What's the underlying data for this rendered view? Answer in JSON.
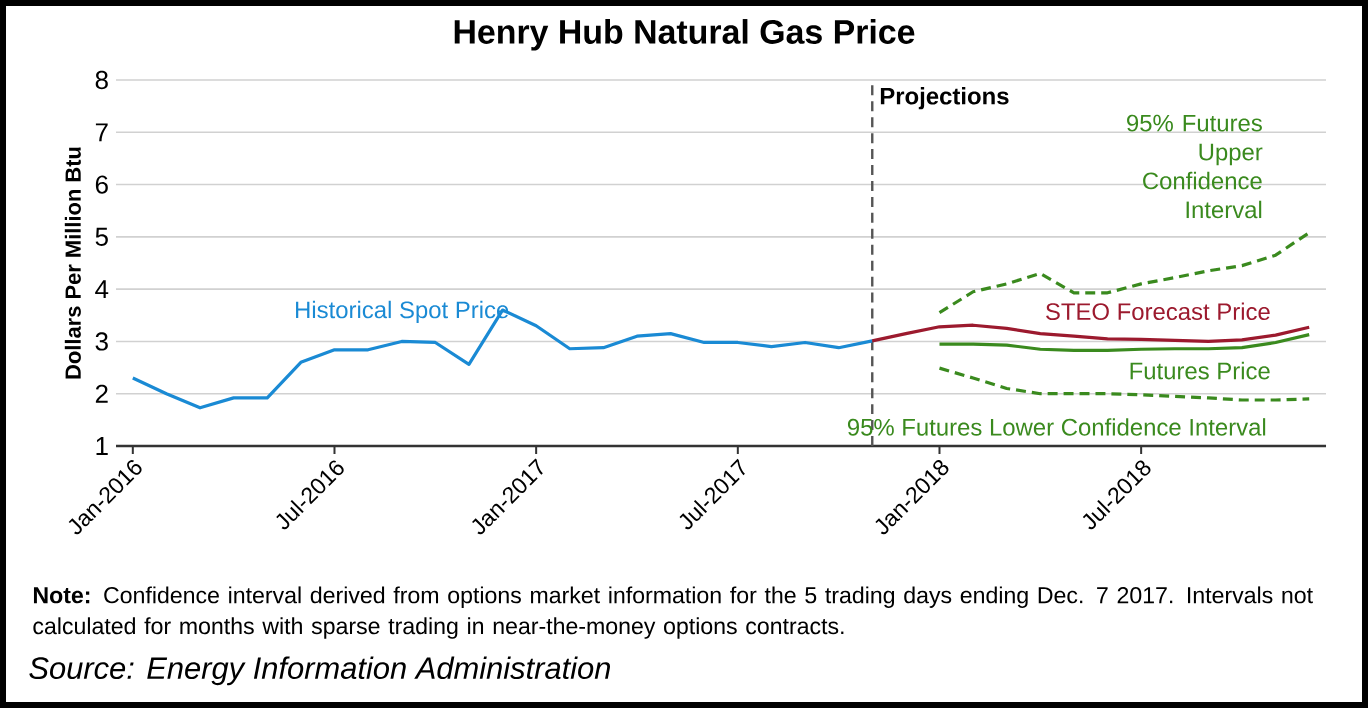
{
  "chart_data": {
    "type": "line",
    "title": "Henry Hub Natural Gas Price",
    "ylabel": "Dollars Per Million Btu",
    "xlim": [
      "2015-12-16",
      "2018-12-16"
    ],
    "xticks": [
      {
        "value": "2016-01",
        "label": "Jan-2016"
      },
      {
        "value": "2016-07",
        "label": "Jul-2016"
      },
      {
        "value": "2017-01",
        "label": "Jan-2017"
      },
      {
        "value": "2017-07",
        "label": "Jul-2017"
      },
      {
        "value": "2018-01",
        "label": "Jan-2018"
      },
      {
        "value": "2018-07",
        "label": "Jul-2018"
      }
    ],
    "ylim": [
      1,
      8
    ],
    "yticks": [
      1,
      2,
      3,
      4,
      5,
      6,
      7,
      8
    ],
    "grid": "y",
    "legend": false,
    "series": [
      {
        "name": "Historical Spot Price",
        "color": "#1a8ad4",
        "x": [
          "2016-01",
          "2016-02",
          "2016-03",
          "2016-04",
          "2016-05",
          "2016-06",
          "2016-07",
          "2016-08",
          "2016-09",
          "2016-10",
          "2016-11",
          "2016-12",
          "2017-01",
          "2017-02",
          "2017-03",
          "2017-04",
          "2017-05",
          "2017-06",
          "2017-07",
          "2017-08",
          "2017-09",
          "2017-10",
          "2017-11"
        ],
        "values": [
          2.3,
          2.0,
          1.73,
          1.92,
          1.92,
          2.6,
          2.84,
          2.84,
          3.0,
          2.98,
          2.56,
          3.6,
          3.3,
          2.86,
          2.88,
          3.1,
          3.15,
          2.98,
          2.98,
          2.9,
          2.98,
          2.88,
          3.01
        ]
      },
      {
        "name": "STEO Forecast Price",
        "color": "#9c1a2e",
        "x": [
          "2017-11",
          "2017-12",
          "2018-01",
          "2018-02",
          "2018-03",
          "2018-04",
          "2018-05",
          "2018-06",
          "2018-07",
          "2018-08",
          "2018-09",
          "2018-10",
          "2018-11",
          "2018-12"
        ],
        "values": [
          3.01,
          3.15,
          3.28,
          3.31,
          3.25,
          3.15,
          3.1,
          3.05,
          3.04,
          3.02,
          3.0,
          3.03,
          3.12,
          3.27
        ]
      },
      {
        "name": "95% Futures Upper Confidence Interval",
        "color": "#3a8a1e",
        "line_style": "dashed",
        "x": [
          "2018-01",
          "2018-02",
          "2018-03",
          "2018-04",
          "2018-05",
          "2018-06",
          "2018-07",
          "2018-08",
          "2018-09",
          "2018-10",
          "2018-11",
          "2018-12"
        ],
        "values": [
          3.55,
          3.95,
          4.1,
          4.3,
          3.93,
          3.93,
          4.1,
          4.22,
          4.35,
          4.45,
          4.65,
          5.08
        ]
      },
      {
        "name": "Futures Price",
        "color": "#3a8a1e",
        "line_style": "solid",
        "x": [
          "2018-01",
          "2018-02",
          "2018-03",
          "2018-04",
          "2018-05",
          "2018-06",
          "2018-07",
          "2018-08",
          "2018-09",
          "2018-10",
          "2018-11",
          "2018-12"
        ],
        "values": [
          2.95,
          2.95,
          2.93,
          2.85,
          2.83,
          2.83,
          2.85,
          2.86,
          2.86,
          2.88,
          2.98,
          3.13
        ]
      },
      {
        "name": "95% Futures Lower Confidence Interval",
        "color": "#3a8a1e",
        "line_style": "dashed",
        "x": [
          "2018-01",
          "2018-02",
          "2018-03",
          "2018-04",
          "2018-05",
          "2018-06",
          "2018-07",
          "2018-08",
          "2018-09",
          "2018-10",
          "2018-11",
          "2018-12"
        ],
        "values": [
          2.49,
          2.3,
          2.1,
          2.0,
          2.0,
          2.0,
          1.98,
          1.95,
          1.92,
          1.88,
          1.88,
          1.9
        ]
      }
    ],
    "ref_lines": [
      {
        "axis": "x",
        "value": "2017-11",
        "label": "Projections",
        "color": "#555555",
        "line_style": "dashed"
      }
    ],
    "annotations": [
      "**Note:** Confidence interval derived from options market information for the 5 trading days ending Dec. 7 2017. Intervals not calculated for months with sparse trading in near-the-money options contracts.",
      "Source: Energy Information Administration"
    ]
  }
}
